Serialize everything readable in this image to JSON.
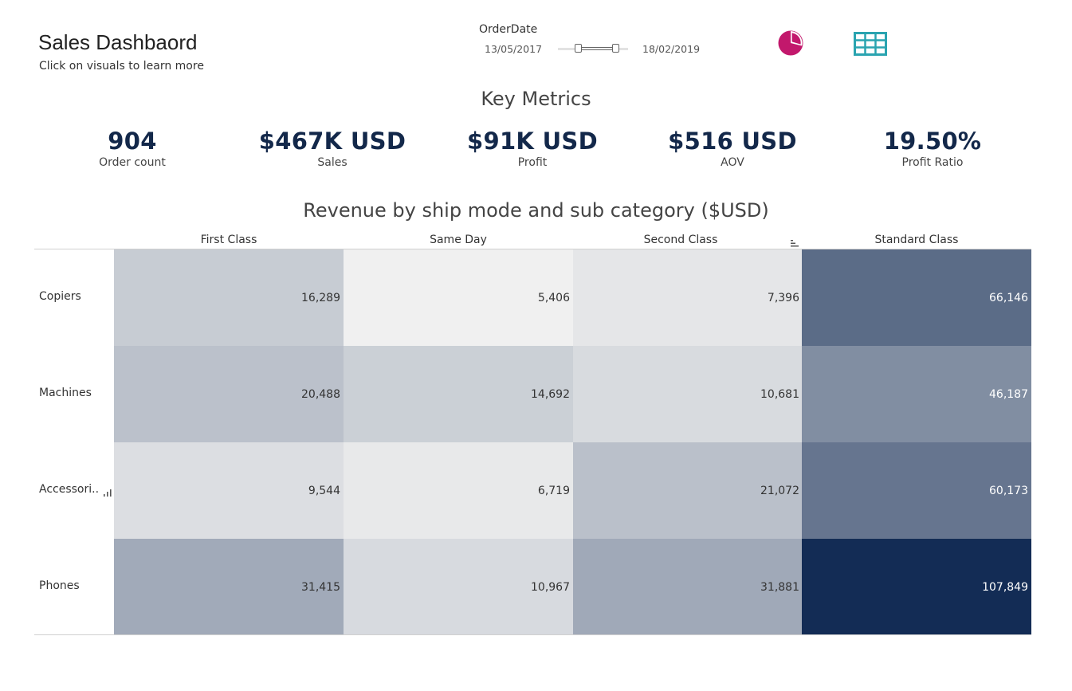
{
  "header": {
    "title": "Sales Dashbaord",
    "subtitle": "Click on visuals to learn more"
  },
  "order_date_filter": {
    "label": "OrderDate",
    "start": "13/05/2017",
    "end": "18/02/2019"
  },
  "view_toggles": [
    {
      "icon": "pie-chart-icon",
      "color": "#c2186c"
    },
    {
      "icon": "table-icon",
      "color": "#2aa4b0"
    }
  ],
  "key_metrics": {
    "title": "Key Metrics",
    "items": [
      {
        "value": "904",
        "label": "Order count"
      },
      {
        "value": "$467K USD",
        "label": "Sales"
      },
      {
        "value": "$91K USD",
        "label": "Profit"
      },
      {
        "value": "$516 USD",
        "label": "AOV"
      },
      {
        "value": "19.50%",
        "label": "Profit  Ratio"
      }
    ]
  },
  "heatmap": {
    "title": "Revenue by ship mode and sub category ($USD)",
    "columns": [
      "First Class",
      "Same Day",
      "Second Class",
      "Standard Class"
    ],
    "rows": [
      {
        "label": "Copiers",
        "values": [
          "16,289",
          "5,406",
          "7,396",
          "66,146"
        ]
      },
      {
        "label": "Machines",
        "values": [
          "20,488",
          "14,692",
          "10,681",
          "46,187"
        ]
      },
      {
        "label": "Accessori..",
        "values": [
          "9,544",
          "6,719",
          "21,072",
          "60,173"
        ]
      },
      {
        "label": "Phones",
        "values": [
          "31,415",
          "10,967",
          "31,881",
          "107,849"
        ]
      }
    ],
    "color_low": "#f0f0f0",
    "color_high": "#132c55"
  },
  "chart_data": {
    "type": "heatmap",
    "title": "Revenue by ship mode and sub category ($USD)",
    "x_categories": [
      "First Class",
      "Same Day",
      "Second Class",
      "Standard Class"
    ],
    "y_categories": [
      "Copiers",
      "Machines",
      "Accessori..",
      "Phones"
    ],
    "values": [
      [
        16289,
        5406,
        7396,
        66146
      ],
      [
        20488,
        14692,
        10681,
        46187
      ],
      [
        9544,
        6719,
        21072,
        60173
      ],
      [
        31415,
        10967,
        31881,
        107849
      ]
    ]
  }
}
